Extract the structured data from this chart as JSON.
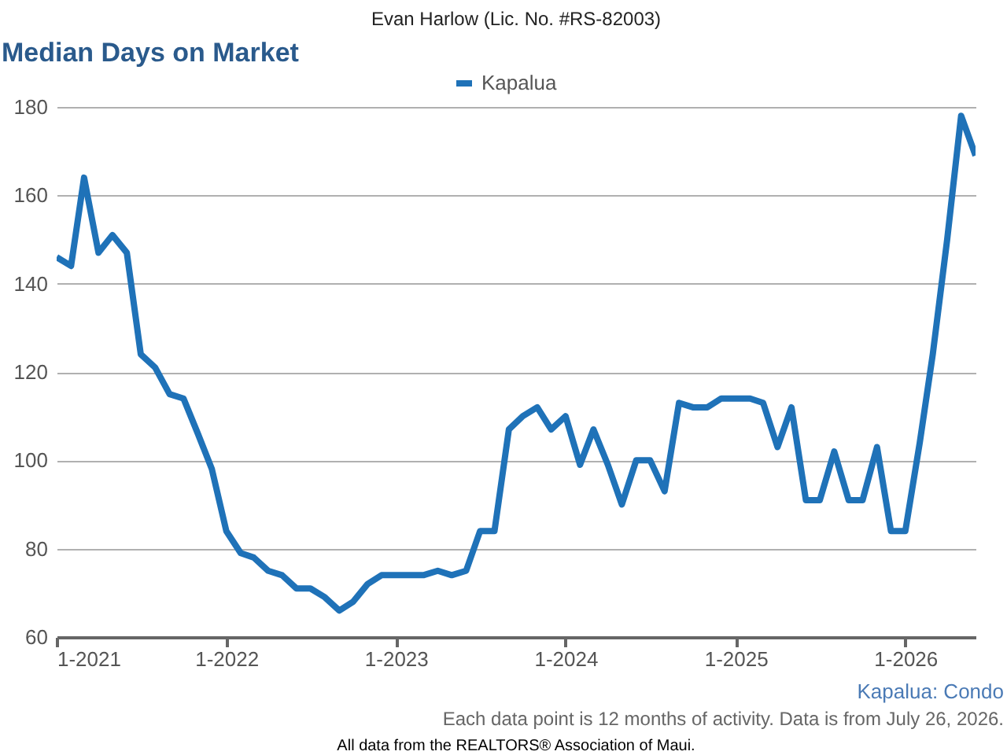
{
  "chart_data": {
    "type": "line",
    "title": "Median Days on Market",
    "annotations": [
      "Evan Harlow (Lic. No. #RS-82003)",
      "Kapalua: Condo",
      "Each data point is 12 months of activity. Data is from July 26, 2026.",
      "All data from the REALTORS® Association of Maui."
    ],
    "x": [
      "2021-01",
      "2021-02",
      "2021-03",
      "2021-04",
      "2021-05",
      "2021-06",
      "2021-07",
      "2021-08",
      "2021-09",
      "2021-10",
      "2021-11",
      "2021-12",
      "2022-01",
      "2022-02",
      "2022-03",
      "2022-04",
      "2022-05",
      "2022-06",
      "2022-07",
      "2022-08",
      "2022-09",
      "2022-10",
      "2022-11",
      "2022-12",
      "2023-01",
      "2023-02",
      "2023-03",
      "2023-04",
      "2023-05",
      "2023-06",
      "2023-07",
      "2023-08",
      "2023-09",
      "2023-10",
      "2023-11",
      "2023-12",
      "2024-01",
      "2024-02",
      "2024-03",
      "2024-04",
      "2024-05",
      "2024-06",
      "2024-07",
      "2024-08",
      "2024-09",
      "2024-10",
      "2024-11",
      "2024-12",
      "2025-01",
      "2025-02",
      "2025-03",
      "2025-04",
      "2025-05",
      "2025-06",
      "2025-07",
      "2025-08",
      "2025-09",
      "2025-10",
      "2025-11",
      "2025-12",
      "2026-01",
      "2026-02",
      "2026-03",
      "2026-04",
      "2026-05",
      "2026-06"
    ],
    "series": [
      {
        "name": "Kapalua",
        "color": "#1f72b8",
        "values": [
          146,
          144,
          164,
          147,
          151,
          147,
          124,
          121,
          115,
          114,
          106,
          98,
          84,
          79,
          78,
          75,
          74,
          71,
          71,
          69,
          66,
          68,
          72,
          74,
          74,
          74,
          74,
          75,
          74,
          75,
          84,
          84,
          107,
          110,
          112,
          107,
          110,
          99,
          107,
          99,
          90,
          100,
          100,
          93,
          113,
          112,
          112,
          114,
          114,
          114,
          113,
          103,
          112,
          91,
          91,
          102,
          91,
          91,
          103,
          84,
          84,
          104,
          124,
          150,
          178,
          169
        ]
      }
    ],
    "xlim": [
      "2021-01",
      "2026-06"
    ],
    "xticks": [
      {
        "value": "2021-01",
        "label": "1-2021"
      },
      {
        "value": "2022-01",
        "label": "1-2022"
      },
      {
        "value": "2023-01",
        "label": "1-2023"
      },
      {
        "value": "2024-01",
        "label": "1-2024"
      },
      {
        "value": "2025-01",
        "label": "1-2025"
      },
      {
        "value": "2026-01",
        "label": "1-2026"
      }
    ],
    "ylim": [
      60,
      180
    ],
    "yticks": [
      60,
      80,
      100,
      120,
      140,
      160,
      180
    ],
    "grid": "y",
    "legend": "top",
    "marker": "none",
    "line_style": "solid"
  }
}
